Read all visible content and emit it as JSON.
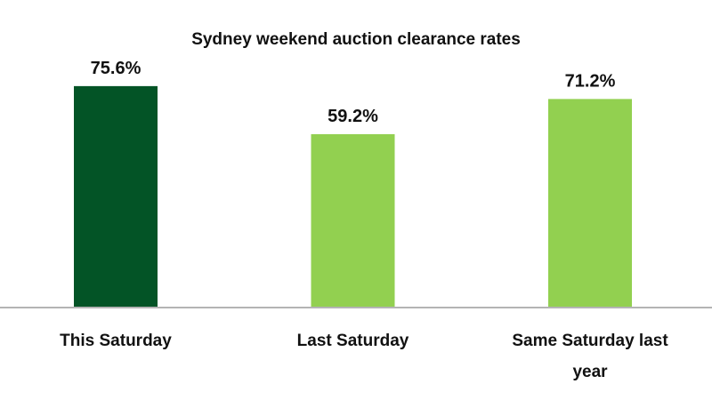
{
  "chart_data": {
    "type": "bar",
    "title": "Sydney weekend auction clearance rates",
    "categories": [
      "This Saturday",
      "Last Saturday",
      "Same Saturday last year"
    ],
    "category_lines": [
      [
        "This Saturday"
      ],
      [
        "Last Saturday"
      ],
      [
        "Same Saturday last",
        "year"
      ]
    ],
    "values": [
      75.6,
      59.2,
      71.2
    ],
    "data_labels": [
      "75.6%",
      "59.2%",
      "71.2%"
    ],
    "colors": [
      "#035426",
      "#92d050",
      "#92d050"
    ],
    "axis_color": "#b4b4b4",
    "xlabel": "",
    "ylabel": "",
    "ylim": [
      0,
      105
    ],
    "grid": false,
    "legend": "none"
  }
}
